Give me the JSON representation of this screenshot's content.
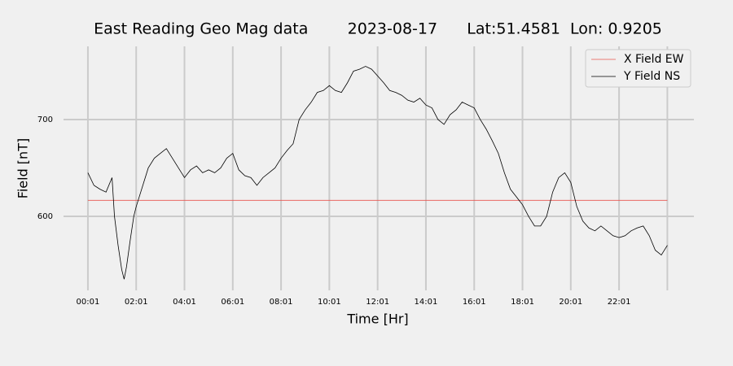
{
  "chart_data": {
    "type": "line",
    "title": "East Reading Geo Mag data        2023-08-17      Lat:51.4581  Lon: 0.9205",
    "xlabel": "Time  [Hr]",
    "ylabel": "Field  [nT]",
    "xlim": [
      -1.01,
      25.1
    ],
    "ylim": [
      523.5,
      775.6
    ],
    "xticks": [
      {
        "value": 0,
        "label": "00:01"
      },
      {
        "value": 2,
        "label": "02:01"
      },
      {
        "value": 4,
        "label": "04:01"
      },
      {
        "value": 6,
        "label": "06:01"
      },
      {
        "value": 8,
        "label": "08:01"
      },
      {
        "value": 10,
        "label": "10:01"
      },
      {
        "value": 12,
        "label": "12:01"
      },
      {
        "value": 14,
        "label": "14:01"
      },
      {
        "value": 16,
        "label": "16:01"
      },
      {
        "value": 18,
        "label": "18:01"
      },
      {
        "value": 20,
        "label": "20:01"
      },
      {
        "value": 22,
        "label": "22:01"
      },
      {
        "value": 24,
        "label": null
      }
    ],
    "yticks": [
      600,
      700
    ],
    "grid": true,
    "legend": "upper right",
    "series": [
      {
        "name": "X Field EW",
        "color": "#e8544e",
        "x": [
          0,
          24
        ],
        "values": [
          616.5,
          616.5
        ]
      },
      {
        "name": "Y Field NS",
        "color": "#000000",
        "x": [
          0,
          0.25,
          0.5,
          0.75,
          1,
          1.1,
          1.25,
          1.4,
          1.5,
          1.6,
          1.75,
          1.9,
          2,
          2.25,
          2.5,
          2.75,
          3,
          3.25,
          3.5,
          3.75,
          4,
          4.25,
          4.5,
          4.75,
          5,
          5.25,
          5.5,
          5.75,
          6,
          6.25,
          6.5,
          6.75,
          7,
          7.25,
          7.5,
          7.75,
          8,
          8.25,
          8.5,
          8.75,
          9,
          9.25,
          9.5,
          9.75,
          10,
          10.25,
          10.5,
          10.75,
          11,
          11.25,
          11.5,
          11.75,
          12,
          12.25,
          12.5,
          12.75,
          13,
          13.25,
          13.5,
          13.75,
          14,
          14.25,
          14.5,
          14.75,
          15,
          15.25,
          15.5,
          15.75,
          16,
          16.25,
          16.5,
          16.75,
          17,
          17.25,
          17.5,
          17.75,
          18,
          18.25,
          18.5,
          18.75,
          19,
          19.25,
          19.5,
          19.75,
          20,
          20.25,
          20.5,
          20.75,
          21,
          21.25,
          21.5,
          21.75,
          22,
          22.25,
          22.5,
          22.75,
          23,
          23.25,
          23.5,
          23.75,
          24
        ],
        "values": [
          645,
          632,
          628,
          625,
          640,
          600,
          570,
          545,
          535,
          548,
          575,
          600,
          610,
          630,
          650,
          660,
          665,
          670,
          660,
          650,
          640,
          648,
          652,
          645,
          648,
          645,
          650,
          660,
          665,
          648,
          642,
          640,
          632,
          640,
          645,
          650,
          660,
          668,
          675,
          700,
          710,
          718,
          728,
          730,
          735,
          730,
          728,
          738,
          750,
          752,
          755,
          752,
          745,
          738,
          730,
          728,
          725,
          720,
          718,
          722,
          715,
          712,
          700,
          695,
          705,
          710,
          718,
          715,
          712,
          700,
          690,
          678,
          665,
          645,
          628,
          620,
          612,
          600,
          590,
          590,
          600,
          625,
          640,
          645,
          635,
          610,
          595,
          588,
          585,
          590,
          585,
          580,
          578,
          580,
          585,
          588,
          590,
          580,
          565,
          560,
          570
        ]
      }
    ]
  }
}
